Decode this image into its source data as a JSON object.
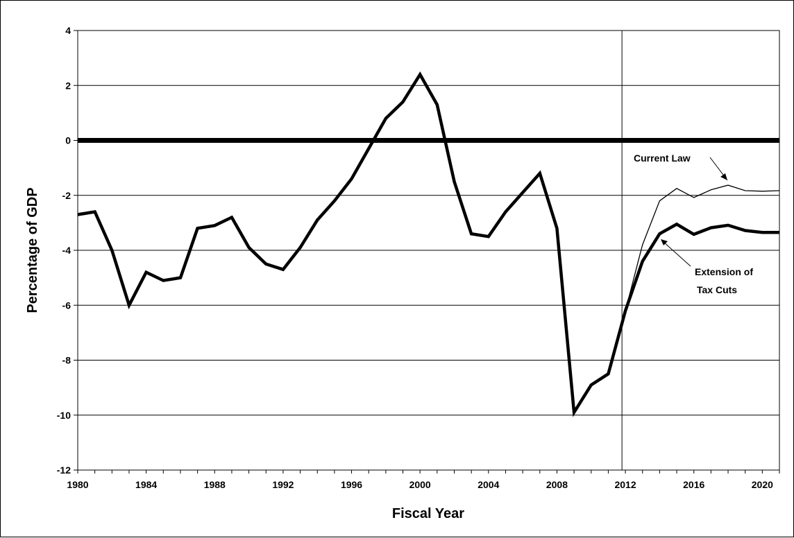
{
  "chart_data": {
    "type": "line",
    "title": "",
    "xlabel": "Fiscal Year",
    "ylabel": "Percentage of GDP",
    "xlim": [
      1980,
      2021
    ],
    "ylim": [
      -12,
      4
    ],
    "y_ticks": [
      "-12",
      "-10",
      "-8",
      "-6",
      "-4",
      "-2",
      "0",
      "2",
      "4"
    ],
    "x_ticks": [
      "1980",
      "1984",
      "1988",
      "1992",
      "1996",
      "2000",
      "2004",
      "2008",
      "2012",
      "2016",
      "2020"
    ],
    "grid": "horizontal",
    "reference_line": {
      "y": 0
    },
    "vertical_marker": {
      "x": 2011.8
    },
    "series": [
      {
        "name": "Extension of Tax Cuts",
        "style": "thick",
        "color": "#000000",
        "x": [
          1980,
          1981,
          1982,
          1983,
          1984,
          1985,
          1986,
          1987,
          1988,
          1989,
          1990,
          1991,
          1992,
          1993,
          1994,
          1995,
          1996,
          1997,
          1998,
          1999,
          2000,
          2001,
          2002,
          2003,
          2004,
          2005,
          2006,
          2007,
          2008,
          2009,
          2010,
          2011,
          2012,
          2013,
          2014,
          2015,
          2016,
          2017,
          2018,
          2019,
          2020,
          2021
        ],
        "values": [
          -2.7,
          -2.6,
          -4.0,
          -6.0,
          -4.8,
          -5.1,
          -5.0,
          -3.2,
          -3.1,
          -2.8,
          -3.9,
          -4.5,
          -4.7,
          -3.9,
          -2.9,
          -2.2,
          -1.4,
          -0.3,
          0.8,
          1.4,
          2.4,
          1.3,
          -1.5,
          -3.4,
          -3.5,
          -2.6,
          -1.9,
          -1.2,
          -3.2,
          -9.9,
          -8.9,
          -8.5,
          -6.2,
          -4.4,
          -3.4,
          -3.05,
          -3.42,
          -3.18,
          -3.09,
          -3.28,
          -3.35,
          -3.35
        ]
      },
      {
        "name": "Current Law",
        "style": "thin",
        "color": "#000000",
        "x": [
          2011,
          2012,
          2013,
          2014,
          2015,
          2016,
          2017,
          2018,
          2019,
          2020,
          2021
        ],
        "values": [
          -8.5,
          -6.2,
          -3.8,
          -2.2,
          -1.75,
          -2.08,
          -1.8,
          -1.63,
          -1.83,
          -1.85,
          -1.83
        ]
      }
    ],
    "annotations": [
      {
        "lines": [
          "Current Law"
        ],
        "target_series": "Current Law"
      },
      {
        "lines": [
          "Extension of",
          "Tax Cuts"
        ],
        "target_series": "Extension of Tax Cuts"
      }
    ]
  }
}
